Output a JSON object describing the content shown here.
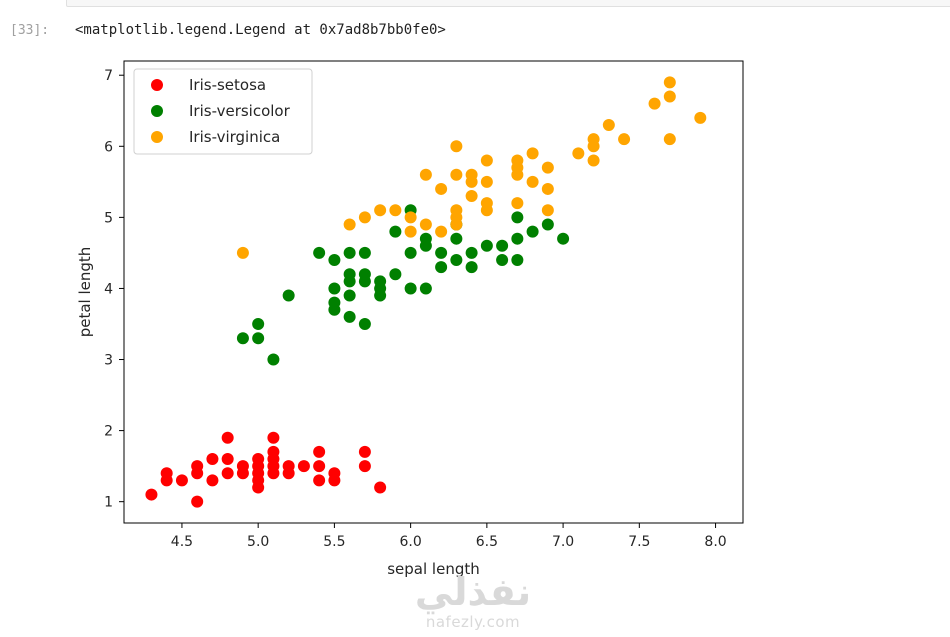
{
  "cell": {
    "prompt": "[33]:",
    "output": "<matplotlib.legend.Legend at 0x7ad8b7bb0fe0>"
  },
  "watermark": {
    "arabic": "نفذلي",
    "latin": "nafezly.com"
  },
  "chart_data": {
    "type": "scatter",
    "xlabel": "sepal length",
    "ylabel": "petal length",
    "xlim": [
      4.12,
      8.18
    ],
    "ylim": [
      0.7,
      7.2
    ],
    "xticks": [
      4.5,
      5.0,
      5.5,
      6.0,
      6.5,
      7.0,
      7.5,
      8.0
    ],
    "xtick_labels": [
      "4.5",
      "5.0",
      "5.5",
      "6.0",
      "6.5",
      "7.0",
      "7.5",
      "8.0"
    ],
    "yticks": [
      1,
      2,
      3,
      4,
      5,
      6,
      7
    ],
    "ytick_labels": [
      "1",
      "2",
      "3",
      "4",
      "5",
      "6",
      "7"
    ],
    "grid": false,
    "legend_position": "top-left",
    "series": [
      {
        "name": "Iris-setosa",
        "color": "#ff0000",
        "points": [
          [
            4.3,
            1.1
          ],
          [
            4.4,
            1.3
          ],
          [
            4.4,
            1.4
          ],
          [
            4.5,
            1.3
          ],
          [
            4.6,
            1.0
          ],
          [
            4.6,
            1.4
          ],
          [
            4.6,
            1.5
          ],
          [
            4.7,
            1.3
          ],
          [
            4.7,
            1.6
          ],
          [
            4.8,
            1.4
          ],
          [
            4.8,
            1.6
          ],
          [
            4.8,
            1.9
          ],
          [
            4.9,
            1.4
          ],
          [
            4.9,
            1.5
          ],
          [
            5.0,
            1.2
          ],
          [
            5.0,
            1.3
          ],
          [
            5.0,
            1.4
          ],
          [
            5.0,
            1.5
          ],
          [
            5.0,
            1.6
          ],
          [
            5.1,
            1.4
          ],
          [
            5.1,
            1.5
          ],
          [
            5.1,
            1.6
          ],
          [
            5.1,
            1.7
          ],
          [
            5.1,
            1.9
          ],
          [
            5.2,
            1.4
          ],
          [
            5.2,
            1.5
          ],
          [
            5.3,
            1.5
          ],
          [
            5.4,
            1.3
          ],
          [
            5.4,
            1.5
          ],
          [
            5.4,
            1.7
          ],
          [
            5.5,
            1.3
          ],
          [
            5.5,
            1.4
          ],
          [
            5.7,
            1.5
          ],
          [
            5.7,
            1.7
          ],
          [
            5.8,
            1.2
          ]
        ]
      },
      {
        "name": "Iris-versicolor",
        "color": "#008000",
        "points": [
          [
            4.9,
            3.3
          ],
          [
            5.0,
            3.3
          ],
          [
            5.0,
            3.5
          ],
          [
            5.1,
            3.0
          ],
          [
            5.2,
            3.9
          ],
          [
            5.4,
            4.5
          ],
          [
            5.5,
            3.7
          ],
          [
            5.5,
            3.8
          ],
          [
            5.5,
            4.0
          ],
          [
            5.5,
            4.4
          ],
          [
            5.6,
            3.6
          ],
          [
            5.6,
            3.9
          ],
          [
            5.6,
            4.1
          ],
          [
            5.6,
            4.2
          ],
          [
            5.6,
            4.5
          ],
          [
            5.7,
            3.5
          ],
          [
            5.7,
            4.1
          ],
          [
            5.7,
            4.2
          ],
          [
            5.7,
            4.5
          ],
          [
            5.8,
            3.9
          ],
          [
            5.8,
            4.0
          ],
          [
            5.8,
            4.1
          ],
          [
            5.9,
            4.2
          ],
          [
            5.9,
            4.8
          ],
          [
            6.0,
            4.0
          ],
          [
            6.0,
            4.5
          ],
          [
            6.0,
            5.1
          ],
          [
            6.1,
            4.0
          ],
          [
            6.1,
            4.6
          ],
          [
            6.1,
            4.7
          ],
          [
            6.2,
            4.3
          ],
          [
            6.2,
            4.5
          ],
          [
            6.3,
            4.4
          ],
          [
            6.3,
            4.7
          ],
          [
            6.3,
            4.9
          ],
          [
            6.4,
            4.3
          ],
          [
            6.4,
            4.5
          ],
          [
            6.5,
            4.6
          ],
          [
            6.6,
            4.4
          ],
          [
            6.6,
            4.6
          ],
          [
            6.7,
            4.4
          ],
          [
            6.7,
            4.7
          ],
          [
            6.7,
            5.0
          ],
          [
            6.8,
            4.8
          ],
          [
            6.9,
            4.9
          ],
          [
            7.0,
            4.7
          ]
        ]
      },
      {
        "name": "Iris-virginica",
        "color": "#ffa500",
        "points": [
          [
            4.9,
            4.5
          ],
          [
            5.6,
            4.9
          ],
          [
            5.7,
            5.0
          ],
          [
            5.8,
            5.1
          ],
          [
            5.9,
            5.1
          ],
          [
            6.0,
            4.8
          ],
          [
            6.0,
            5.0
          ],
          [
            6.1,
            4.9
          ],
          [
            6.1,
            5.6
          ],
          [
            6.2,
            4.8
          ],
          [
            6.2,
            5.4
          ],
          [
            6.3,
            4.9
          ],
          [
            6.3,
            5.0
          ],
          [
            6.3,
            5.1
          ],
          [
            6.3,
            5.6
          ],
          [
            6.3,
            6.0
          ],
          [
            6.4,
            5.3
          ],
          [
            6.4,
            5.5
          ],
          [
            6.4,
            5.6
          ],
          [
            6.5,
            5.1
          ],
          [
            6.5,
            5.2
          ],
          [
            6.5,
            5.5
          ],
          [
            6.5,
            5.8
          ],
          [
            6.7,
            5.2
          ],
          [
            6.7,
            5.6
          ],
          [
            6.7,
            5.7
          ],
          [
            6.7,
            5.8
          ],
          [
            6.8,
            5.5
          ],
          [
            6.8,
            5.9
          ],
          [
            6.9,
            5.1
          ],
          [
            6.9,
            5.4
          ],
          [
            6.9,
            5.7
          ],
          [
            7.1,
            5.9
          ],
          [
            7.2,
            5.8
          ],
          [
            7.2,
            6.0
          ],
          [
            7.2,
            6.1
          ],
          [
            7.3,
            6.3
          ],
          [
            7.4,
            6.1
          ],
          [
            7.6,
            6.6
          ],
          [
            7.7,
            6.1
          ],
          [
            7.7,
            6.7
          ],
          [
            7.7,
            6.9
          ],
          [
            7.9,
            6.4
          ]
        ]
      }
    ]
  }
}
